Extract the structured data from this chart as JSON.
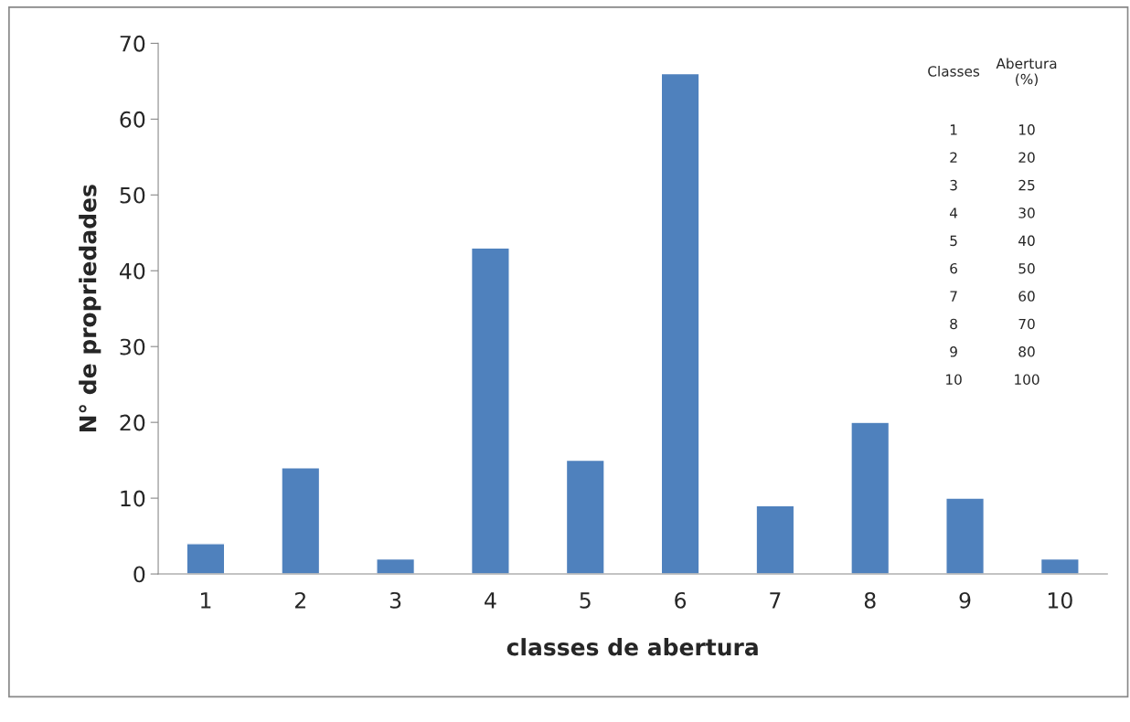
{
  "chart_data": {
    "type": "bar",
    "xlabel": "classes de abertura",
    "ylabel": "N° de propriedades",
    "categories": [
      "1",
      "2",
      "3",
      "4",
      "5",
      "6",
      "7",
      "8",
      "9",
      "10"
    ],
    "values": [
      4,
      14,
      2,
      43,
      15,
      66,
      9,
      20,
      10,
      2
    ],
    "color": "#4f81bd",
    "ylim": [
      0,
      70
    ],
    "yticks": [
      0,
      10,
      20,
      30,
      40,
      50,
      60,
      70
    ],
    "grid": false,
    "annotations": [
      "Classes",
      "Abertura\n(%)",
      "1",
      "10",
      "2",
      "20",
      "3",
      "25",
      "4",
      "30",
      "5",
      "40",
      "6",
      "50",
      "7",
      "60",
      "8",
      "70",
      "9",
      "80",
      "10",
      "100"
    ]
  }
}
